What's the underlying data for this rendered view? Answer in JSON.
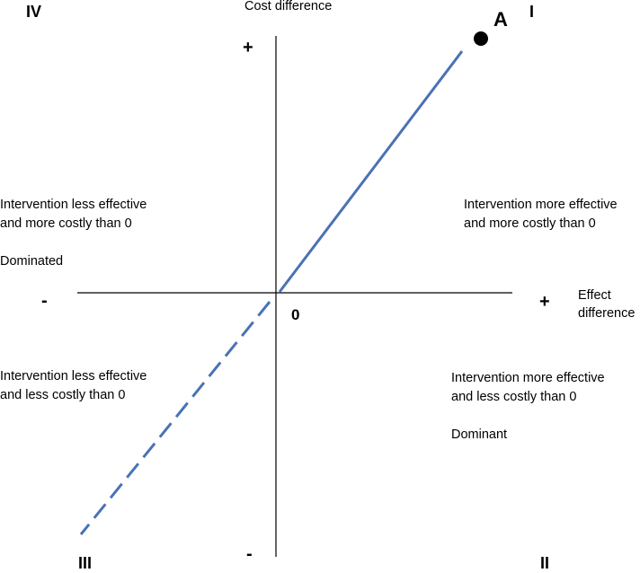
{
  "axes": {
    "y_label": "Cost difference",
    "x_label_line1": "Effect",
    "x_label_line2": "difference",
    "origin_label": "0",
    "y_plus": "+",
    "y_minus": "-",
    "x_plus": "+",
    "x_minus": "-"
  },
  "quadrants": {
    "q1": {
      "numeral": "I",
      "line1": "Intervention more effective",
      "line2": "and more costly than 0"
    },
    "q2": {
      "numeral": "II",
      "line1": "Intervention more effective",
      "line2": "and less costly than 0",
      "status": "Dominant"
    },
    "q3": {
      "numeral": "III",
      "line1": "Intervention less effective",
      "line2": "and less costly than 0"
    },
    "q4": {
      "numeral": "IV",
      "line1": "Intervention less effective",
      "line2": "and more costly than 0",
      "status": "Dominated"
    }
  },
  "point": {
    "label": "A"
  },
  "colors": {
    "threshold_line": "#4a72b5",
    "axis": "#000000",
    "point": "#000000"
  }
}
